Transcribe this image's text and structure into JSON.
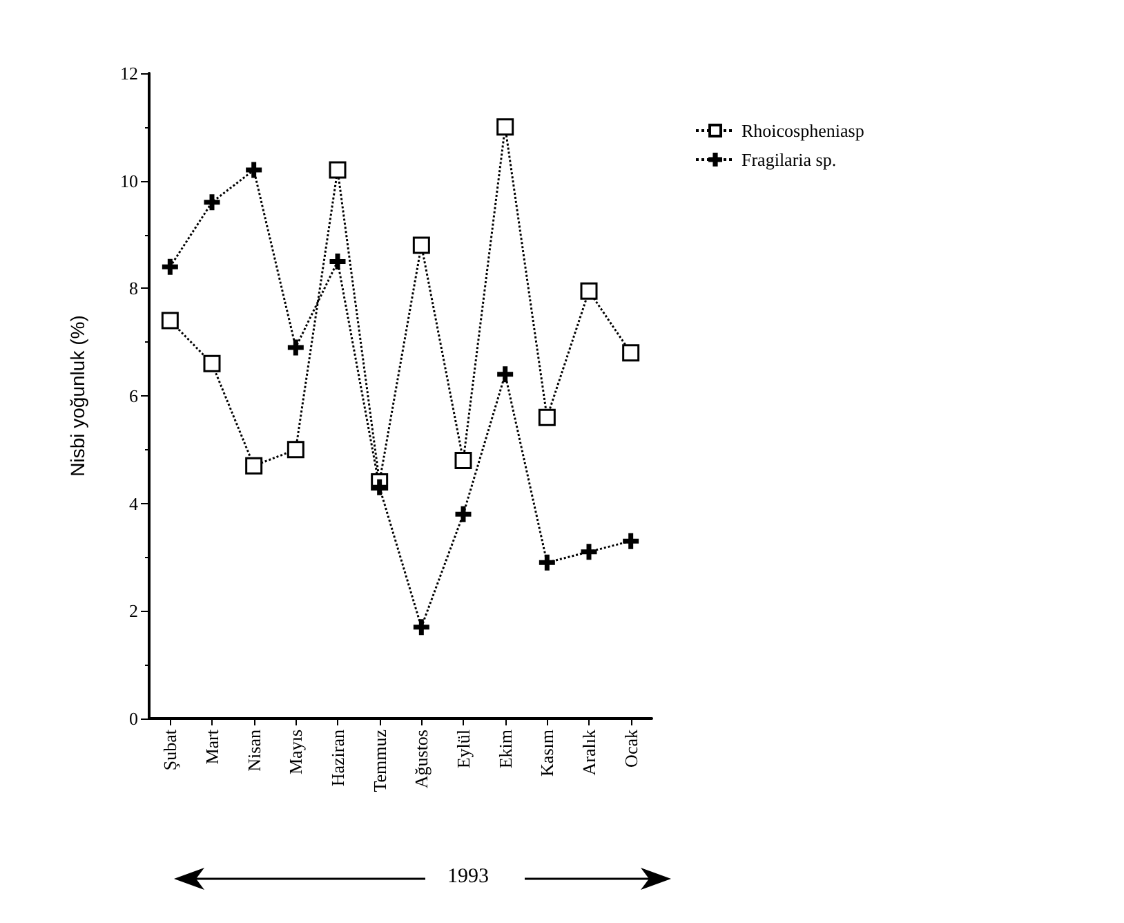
{
  "chart_data": {
    "type": "line",
    "ylabel": "Nisbi yoğunluk (%)",
    "categories": [
      "Şubat",
      "Mart",
      "Nisan",
      "Mayıs",
      "Haziran",
      "Temmuz",
      "Ağustos",
      "Eylül",
      "Ekim",
      "Kasım",
      "Aralık",
      "Ocak"
    ],
    "series": [
      {
        "name": "Rhoicospheniasp",
        "color": "#000000",
        "marker": "square",
        "values": [
          7.4,
          6.6,
          4.7,
          5.0,
          10.2,
          4.4,
          8.8,
          4.8,
          11.0,
          5.6,
          7.95,
          6.8
        ]
      },
      {
        "name": "Fragilaria sp.",
        "color": "#000000",
        "marker": "cross",
        "values": [
          8.4,
          9.6,
          10.2,
          6.9,
          8.5,
          4.3,
          1.7,
          3.8,
          6.4,
          2.9,
          3.1,
          3.3
        ]
      }
    ],
    "ylim": [
      0,
      12
    ],
    "yticks": [
      0,
      2,
      4,
      6,
      8,
      10,
      12
    ],
    "grid": false,
    "legend": "top right",
    "line_style": "dotted",
    "annotations": [
      "1993"
    ]
  }
}
